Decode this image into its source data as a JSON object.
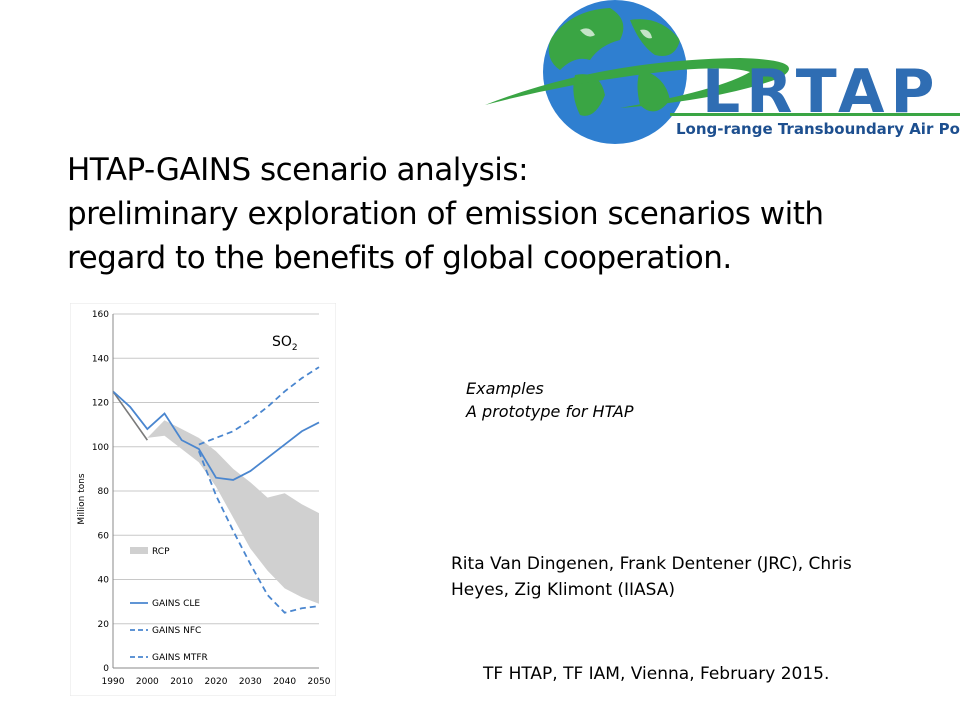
{
  "logo": {
    "name": "LRTAP",
    "tagline": "Long-range Transboundary Air Pollution",
    "colors": {
      "blue": "#2f6db3",
      "green": "#3aa544",
      "dark_blue": "#1d4f8f"
    }
  },
  "title": {
    "line1": "HTAP-GAINS scenario analysis:",
    "line2": "preliminary exploration of emission scenarios with",
    "line3": "regard to the benefits of global cooperation."
  },
  "examples": {
    "line1": "Examples",
    "line2": "A prototype for HTAP"
  },
  "authors": {
    "line1": "Rita Van Dingenen, Frank Dentener (JRC), Chris",
    "line2": "Heyes, Zig Klimont (IIASA)"
  },
  "footer": "TF HTAP, TF IAM, Vienna, February 2015.",
  "chart_data": {
    "type": "line",
    "annotation": {
      "base": "SO",
      "sub": "2"
    },
    "ylabel": "Million tons",
    "xlabel": "",
    "xlim": [
      1990,
      2050
    ],
    "ylim": [
      0,
      160
    ],
    "x_ticks": [
      1990,
      2000,
      2010,
      2020,
      2030,
      2040,
      2050
    ],
    "y_ticks": [
      0,
      20,
      40,
      60,
      80,
      100,
      120,
      140,
      160
    ],
    "grid": "horizontal",
    "legend_position": "lower-left",
    "colors": {
      "rcp": "#d0d0d0",
      "gains": "#4a86cf",
      "history": "#7a7a7a"
    },
    "history": {
      "x": [
        1990,
        2000
      ],
      "y": [
        125,
        103
      ]
    },
    "rcp_range": {
      "name": "RCP",
      "x": [
        2000,
        2005,
        2010,
        2015,
        2020,
        2025,
        2030,
        2035,
        2040,
        2045,
        2050
      ],
      "upper": [
        104,
        112,
        108,
        104,
        98,
        90,
        84,
        77,
        79,
        74,
        70
      ],
      "lower": [
        104,
        105,
        99,
        93,
        82,
        68,
        54,
        44,
        36,
        32,
        29
      ]
    },
    "series": [
      {
        "name": "GAINS CLE",
        "style": "solid",
        "x": [
          1990,
          1995,
          2000,
          2005,
          2010,
          2015,
          2020,
          2025,
          2030,
          2035,
          2040,
          2045,
          2050
        ],
        "y": [
          125,
          118,
          108,
          115,
          103,
          99,
          86,
          85,
          89,
          95,
          101,
          107,
          111
        ]
      },
      {
        "name": "GAINS NFC",
        "style": "dashed",
        "x": [
          2015,
          2020,
          2025,
          2030,
          2035,
          2040,
          2045,
          2050
        ],
        "y": [
          101,
          104,
          107,
          112,
          118,
          125,
          131,
          136
        ]
      },
      {
        "name": "GAINS MTFR",
        "style": "dashed",
        "x": [
          2015,
          2020,
          2025,
          2030,
          2035,
          2040,
          2045,
          2050
        ],
        "y": [
          98,
          78,
          62,
          47,
          33,
          25,
          27,
          28
        ]
      }
    ]
  }
}
